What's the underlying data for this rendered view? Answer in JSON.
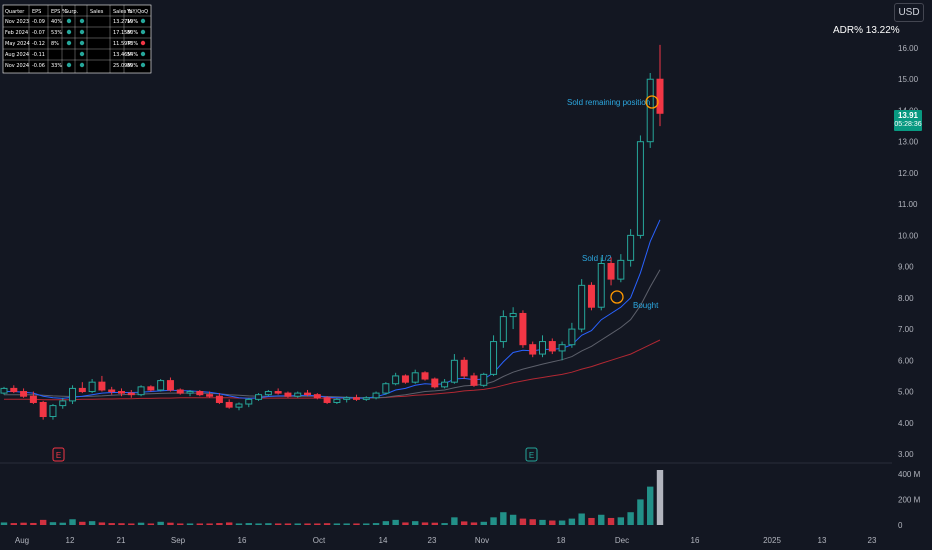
{
  "currency": "USD",
  "adr_text": "ADR%  13.22%",
  "last_price": "13.91",
  "countdown": "05:28:36",
  "earnings_markers": [
    "E",
    "E"
  ],
  "annotations": [
    "Sold remaining position",
    "Sold 1/2",
    "Bought"
  ],
  "earnings_table": {
    "headers": [
      "Quarter",
      "EPS",
      "EPS %",
      "Surp.",
      "Sales",
      "Sales %",
      "YoY/QoQ"
    ],
    "rows": [
      [
        "Nov 2023",
        "-0.09",
        "40%",
        "",
        "",
        "13.27M",
        "19%",
        ""
      ],
      [
        "Feb 2024",
        "-0.07",
        "53%",
        "",
        "",
        "17.15M",
        "80%",
        ""
      ],
      [
        "May 2024",
        "-0.12",
        "8%",
        "",
        "",
        "11.59M",
        "73%",
        ""
      ],
      [
        "Aug 2024",
        "-0.11",
        "",
        "",
        "",
        "13.46M",
        "54%",
        ""
      ],
      [
        "Nov 2024",
        "-0.06",
        "33%",
        "",
        "",
        "25.09M",
        "89%",
        ""
      ]
    ],
    "dots": [
      [
        "#26a69a",
        "#26a69a",
        "#26a69a"
      ],
      [
        "#26a69a",
        "#26a69a",
        "#26a69a"
      ],
      [
        "#26a69a",
        "#26a69a",
        "#f23645"
      ],
      [
        "",
        "#26a69a",
        "#26a69a"
      ],
      [
        "#26a69a",
        "#26a69a",
        "#26a69a"
      ]
    ]
  },
  "colors": {
    "background": "#131722",
    "up": "#26a69a",
    "down": "#f23645",
    "ema_short": "#2962ff",
    "sma_mid": "#5d606b",
    "sma_long": "#b22833",
    "annotation": "#2ca8e0",
    "ring": "#ff9800"
  },
  "chart_data": {
    "type": "candlestick",
    "y_axis": {
      "ticks": [
        3.0,
        4.0,
        5.0,
        6.0,
        7.0,
        8.0,
        9.0,
        10.0,
        11.0,
        12.0,
        13.0,
        14.0,
        15.0,
        16.0
      ],
      "labels": [
        "3.00",
        "4.00",
        "5.00",
        "6.00",
        "7.00",
        "8.00",
        "9.00",
        "10.00",
        "11.00",
        "12.00",
        "13.00",
        "14.00",
        "15.00",
        "16.00"
      ]
    },
    "volume_axis": {
      "labels": [
        "400 M",
        "200 M",
        "0"
      ]
    },
    "x_axis": {
      "labels": [
        "Aug",
        "12",
        "21",
        "Sep",
        "16",
        "Oct",
        "14",
        "23",
        "Nov",
        "18",
        "Dec",
        "16",
        "2025",
        "13",
        "23"
      ]
    },
    "candles": [
      [
        4.95,
        5.15,
        4.9,
        5.1
      ],
      [
        5.1,
        5.2,
        4.95,
        5.0
      ],
      [
        5.0,
        5.1,
        4.8,
        4.85
      ],
      [
        4.85,
        5.0,
        4.6,
        4.65
      ],
      [
        4.65,
        4.7,
        4.1,
        4.2
      ],
      [
        4.2,
        4.6,
        4.1,
        4.55
      ],
      [
        4.55,
        4.8,
        4.45,
        4.7
      ],
      [
        4.7,
        5.2,
        4.6,
        5.1
      ],
      [
        5.1,
        5.3,
        4.95,
        5.0
      ],
      [
        5.0,
        5.4,
        4.95,
        5.3
      ],
      [
        5.3,
        5.5,
        5.0,
        5.05
      ],
      [
        5.05,
        5.15,
        4.9,
        5.0
      ],
      [
        5.0,
        5.1,
        4.85,
        4.95
      ],
      [
        4.95,
        5.05,
        4.8,
        4.9
      ],
      [
        4.9,
        5.2,
        4.85,
        5.15
      ],
      [
        5.15,
        5.2,
        5.0,
        5.05
      ],
      [
        5.05,
        5.4,
        5.0,
        5.35
      ],
      [
        5.35,
        5.45,
        5.0,
        5.05
      ],
      [
        5.05,
        5.1,
        4.9,
        4.95
      ],
      [
        4.95,
        5.05,
        4.85,
        5.0
      ],
      [
        5.0,
        5.05,
        4.85,
        4.9
      ],
      [
        4.9,
        5.0,
        4.8,
        4.85
      ],
      [
        4.85,
        4.95,
        4.6,
        4.65
      ],
      [
        4.65,
        4.75,
        4.45,
        4.5
      ],
      [
        4.5,
        4.65,
        4.4,
        4.6
      ],
      [
        4.6,
        4.8,
        4.5,
        4.75
      ],
      [
        4.75,
        4.95,
        4.7,
        4.9
      ],
      [
        4.9,
        5.05,
        4.85,
        5.0
      ],
      [
        5.0,
        5.1,
        4.9,
        4.95
      ],
      [
        4.95,
        5.0,
        4.8,
        4.85
      ],
      [
        4.85,
        5.0,
        4.8,
        4.95
      ],
      [
        4.95,
        5.05,
        4.85,
        4.9
      ],
      [
        4.9,
        4.95,
        4.75,
        4.8
      ],
      [
        4.8,
        4.85,
        4.6,
        4.65
      ],
      [
        4.65,
        4.8,
        4.6,
        4.75
      ],
      [
        4.75,
        4.85,
        4.65,
        4.8
      ],
      [
        4.8,
        4.9,
        4.7,
        4.75
      ],
      [
        4.75,
        4.85,
        4.7,
        4.8
      ],
      [
        4.8,
        5.0,
        4.75,
        4.95
      ],
      [
        4.95,
        5.3,
        4.9,
        5.25
      ],
      [
        5.25,
        5.6,
        5.2,
        5.5
      ],
      [
        5.5,
        5.55,
        5.25,
        5.3
      ],
      [
        5.3,
        5.7,
        5.25,
        5.6
      ],
      [
        5.6,
        5.65,
        5.35,
        5.4
      ],
      [
        5.4,
        5.45,
        5.1,
        5.15
      ],
      [
        5.15,
        5.4,
        5.1,
        5.3
      ],
      [
        5.3,
        6.2,
        5.25,
        6.0
      ],
      [
        6.0,
        6.1,
        5.4,
        5.5
      ],
      [
        5.5,
        5.6,
        5.15,
        5.2
      ],
      [
        5.2,
        5.6,
        5.15,
        5.55
      ],
      [
        5.55,
        6.8,
        5.5,
        6.6
      ],
      [
        6.6,
        7.6,
        6.4,
        7.4
      ],
      [
        7.4,
        7.7,
        7.0,
        7.5
      ],
      [
        7.5,
        7.6,
        6.4,
        6.5
      ],
      [
        6.5,
        6.6,
        6.1,
        6.2
      ],
      [
        6.2,
        6.8,
        6.1,
        6.6
      ],
      [
        6.6,
        6.7,
        6.2,
        6.3
      ],
      [
        6.3,
        6.6,
        6.0,
        6.5
      ],
      [
        6.5,
        7.2,
        6.4,
        7.0
      ],
      [
        7.0,
        8.6,
        6.9,
        8.4
      ],
      [
        8.4,
        8.5,
        7.6,
        7.7
      ],
      [
        7.7,
        9.3,
        7.6,
        9.1
      ],
      [
        9.1,
        9.3,
        8.4,
        8.6
      ],
      [
        8.6,
        9.4,
        8.5,
        9.2
      ],
      [
        9.2,
        10.2,
        9.0,
        10.0
      ],
      [
        10.0,
        13.2,
        9.9,
        13.0
      ],
      [
        13.0,
        15.2,
        12.8,
        15.0
      ],
      [
        15.0,
        16.1,
        13.5,
        13.91
      ]
    ],
    "ema_short": [
      5.0,
      5.0,
      4.98,
      4.95,
      4.85,
      4.8,
      4.78,
      4.82,
      4.85,
      4.9,
      4.95,
      4.97,
      4.97,
      4.97,
      4.98,
      5.0,
      5.02,
      5.04,
      5.03,
      5.02,
      5.0,
      4.98,
      4.93,
      4.86,
      4.8,
      4.78,
      4.8,
      4.84,
      4.86,
      4.86,
      4.87,
      4.88,
      4.86,
      4.82,
      4.8,
      4.8,
      4.79,
      4.79,
      4.83,
      4.92,
      5.05,
      5.1,
      5.2,
      5.25,
      5.23,
      5.25,
      5.4,
      5.42,
      5.38,
      5.4,
      5.6,
      5.95,
      6.25,
      6.32,
      6.3,
      6.35,
      6.35,
      6.38,
      6.5,
      6.8,
      6.95,
      7.3,
      7.5,
      7.7,
      8.0,
      8.8,
      9.8,
      10.5
    ],
    "sma_mid": [
      4.9,
      4.9,
      4.9,
      4.9,
      4.88,
      4.86,
      4.85,
      4.84,
      4.84,
      4.85,
      4.86,
      4.88,
      4.9,
      4.91,
      4.92,
      4.93,
      4.94,
      4.95,
      4.95,
      4.95,
      4.95,
      4.94,
      4.93,
      4.9,
      4.88,
      4.86,
      4.85,
      4.85,
      4.85,
      4.85,
      4.85,
      4.85,
      4.85,
      4.84,
      4.83,
      4.82,
      4.81,
      4.8,
      4.8,
      4.82,
      4.86,
      4.9,
      4.95,
      5.0,
      5.02,
      5.05,
      5.12,
      5.18,
      5.2,
      5.23,
      5.32,
      5.48,
      5.62,
      5.72,
      5.8,
      5.88,
      5.95,
      6.02,
      6.12,
      6.3,
      6.45,
      6.65,
      6.85,
      7.05,
      7.3,
      7.75,
      8.35,
      8.9
    ],
    "sma_long": [
      4.75,
      4.75,
      4.75,
      4.75,
      4.74,
      4.74,
      4.74,
      4.74,
      4.75,
      4.75,
      4.76,
      4.76,
      4.77,
      4.77,
      4.78,
      4.78,
      4.79,
      4.79,
      4.8,
      4.8,
      4.8,
      4.8,
      4.8,
      4.8,
      4.79,
      4.79,
      4.79,
      4.79,
      4.79,
      4.79,
      4.79,
      4.79,
      4.79,
      4.79,
      4.79,
      4.79,
      4.79,
      4.79,
      4.8,
      4.81,
      4.83,
      4.85,
      4.88,
      4.9,
      4.92,
      4.95,
      4.98,
      5.02,
      5.04,
      5.07,
      5.12,
      5.2,
      5.28,
      5.34,
      5.4,
      5.45,
      5.5,
      5.55,
      5.62,
      5.72,
      5.8,
      5.9,
      6.0,
      6.1,
      6.2,
      6.35,
      6.5,
      6.65
    ],
    "volume": [
      20,
      15,
      18,
      16,
      40,
      22,
      18,
      45,
      25,
      30,
      20,
      15,
      14,
      12,
      18,
      12,
      25,
      18,
      12,
      12,
      12,
      12,
      15,
      20,
      12,
      15,
      12,
      14,
      12,
      12,
      12,
      12,
      12,
      14,
      12,
      12,
      12,
      12,
      15,
      30,
      40,
      20,
      30,
      20,
      18,
      15,
      60,
      28,
      20,
      25,
      60,
      100,
      80,
      50,
      45,
      40,
      35,
      35,
      50,
      90,
      55,
      80,
      55,
      60,
      100,
      200,
      300,
      430
    ]
  }
}
